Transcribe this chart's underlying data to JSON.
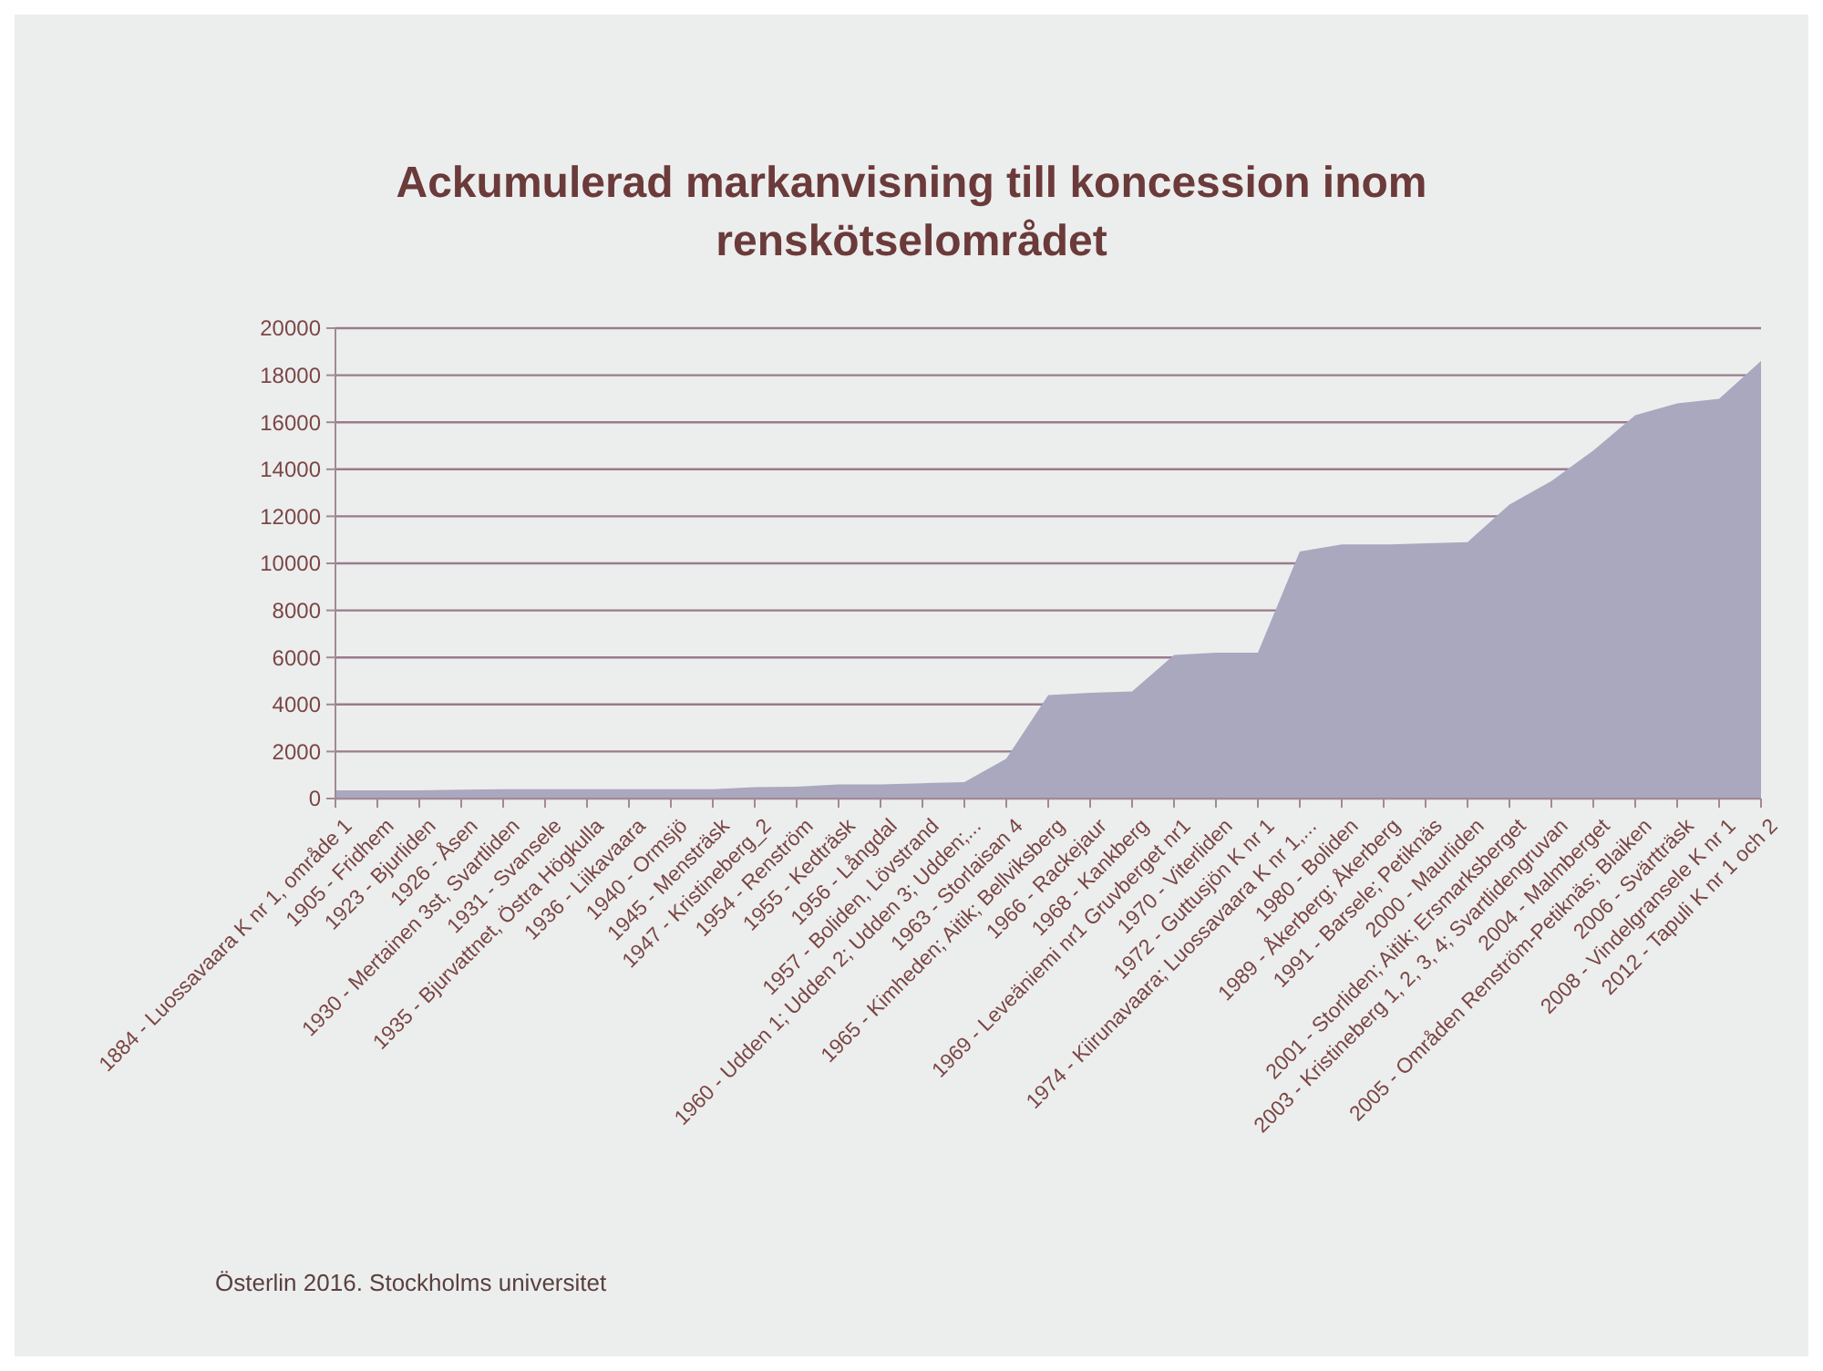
{
  "chart_data": {
    "type": "area",
    "title": "Ackumulerad markanvisning till koncession inom renskötselområdet",
    "categories": [
      "1884 - Luossavaara K nr 1, område 1",
      "1905 - Fridhem",
      "1923 - Bjurliden",
      "1926 - Åsen",
      "1930 - Mertainen 3st, Svartliden",
      "1931 - Svansele",
      "1935 - Bjurvattnet, Östra Högkulla",
      "1936 - Liikavaara",
      "1940 - Ormsjö",
      "1945 - Mensträsk",
      "1947 - Kristineberg_2",
      "1954 - Renström",
      "1955 - Kedträsk",
      "1956 - Långdal",
      "1957 - Boliden, Lövstrand",
      "1960 - Udden 1; Udden 2; Udden 3; Udden;...",
      "1963 - Storlaisan 4",
      "1965 - Kimheden; Aitik; Bellviksberg",
      "1966 - Rackejaur",
      "1968 - Kankberg",
      "1969 - Leveäniemi nr1 Gruvberget nr1",
      "1970 - Viterliden",
      "1972 - Guttusjön K nr 1",
      "1974 - Kiirunavaara; Luossavaara K nr 1,...",
      "1980 - Boliden",
      "1989 - Åkerberg; Åkerberg",
      "1991 - Barsele; Petiknäs",
      "2000 - Maurliden",
      "2001 - Storliden; Aitik; Ersmarksberget",
      "2003 - Kristineberg 1, 2, 3, 4; Svartlidengruvan",
      "2004 - Malmberget",
      "2005 - Områden Renström-Petiknäs; Blaiken",
      "2006 - Svärtträsk",
      "2008 - Vindelgransele K nr 1",
      "2012 - Tapuli K nr 1 och 2"
    ],
    "values": [
      350,
      350,
      350,
      380,
      400,
      400,
      400,
      400,
      400,
      400,
      480,
      500,
      600,
      600,
      650,
      700,
      1700,
      4400,
      4500,
      4550,
      6100,
      6200,
      6200,
      10500,
      10800,
      10800,
      10850,
      10900,
      12500,
      13500,
      14800,
      16300,
      16800,
      17000,
      18600
    ],
    "color": "#a9a8bf",
    "ylim": [
      0,
      20000
    ],
    "yticks": [
      0,
      2000,
      4000,
      6000,
      8000,
      10000,
      12000,
      14000,
      16000,
      18000,
      20000
    ],
    "grid": "y",
    "annotations": [
      "Österlin 2016. Stockholms universitet"
    ]
  }
}
